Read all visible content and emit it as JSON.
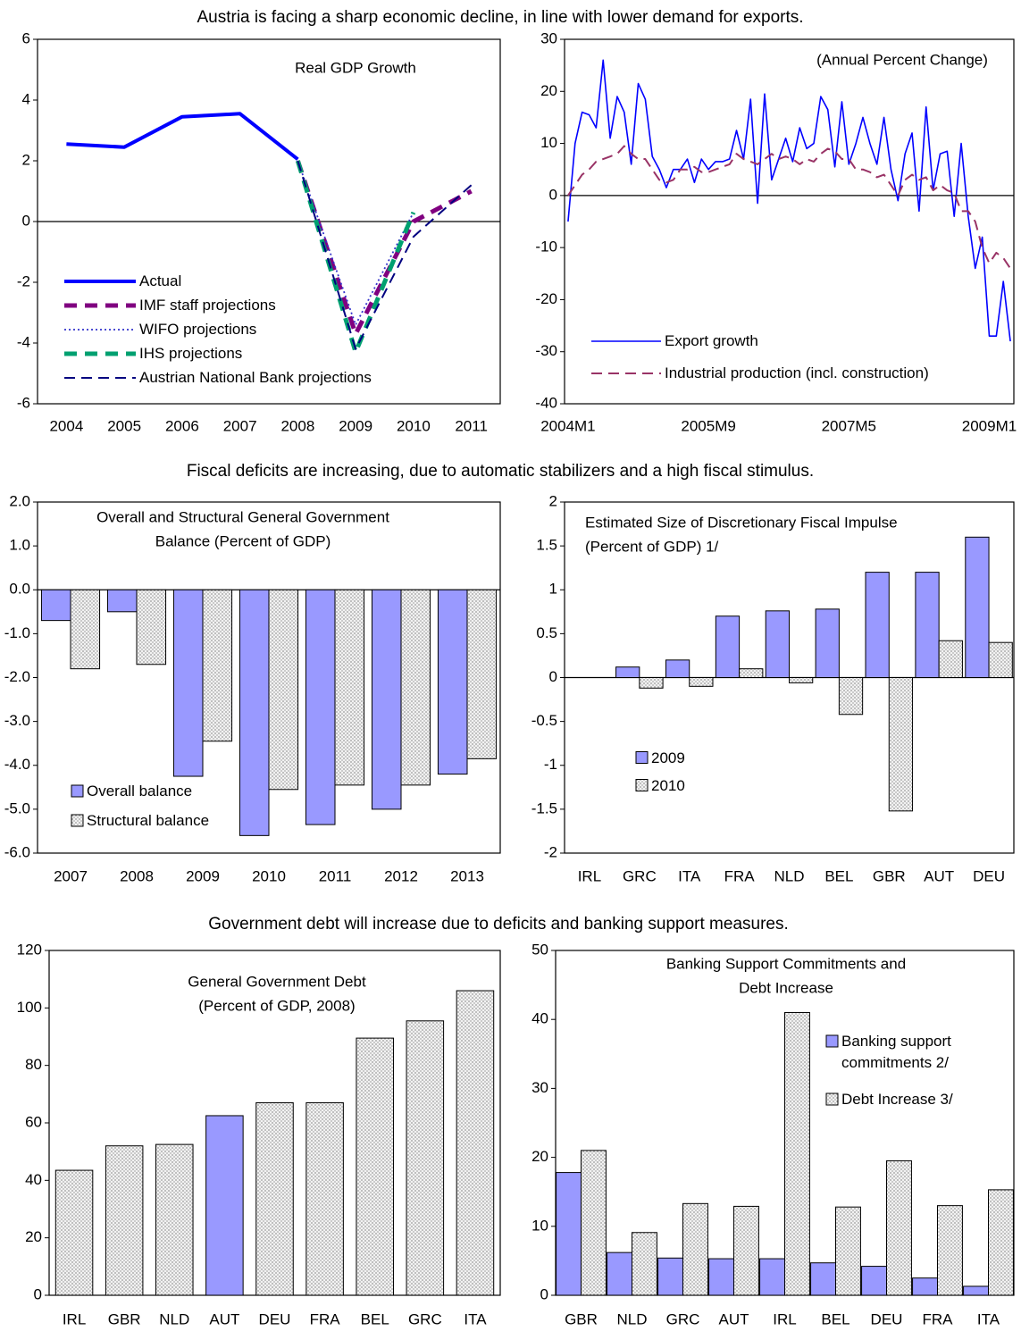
{
  "headings": [
    "Austria is facing a sharp economic decline, in line with lower demand for exports.",
    "Fiscal deficits are increasing, due to automatic stabilizers and a high fiscal stimulus.",
    "Government debt will increase due to deficits and banking support measures."
  ],
  "chart_data": [
    {
      "type": "line",
      "title": [
        "Real GDP Growth"
      ],
      "categories": [
        "2004",
        "2005",
        "2006",
        "2007",
        "2008",
        "2009",
        "2010",
        "2011"
      ],
      "ylim": [
        -6,
        6
      ],
      "yticks": [
        -6,
        -4,
        -2,
        0,
        2,
        4,
        6
      ],
      "legend": "lower left",
      "series": [
        {
          "name": "Actual",
          "color": "#0000ff",
          "style": "solid-thick",
          "values": [
            2.55,
            2.45,
            3.45,
            3.55,
            2.05,
            null,
            null,
            null
          ]
        },
        {
          "name": "IMF staff projections",
          "color": "#800080",
          "style": "dashed-thick",
          "values": [
            null,
            null,
            null,
            null,
            2.0,
            -3.7,
            0.0,
            1.0
          ]
        },
        {
          "name": "WIFO projections",
          "color": "#3333cc",
          "style": "dotted",
          "values": [
            null,
            null,
            null,
            null,
            2.0,
            -3.4,
            0.3,
            null
          ]
        },
        {
          "name": "IHS projections",
          "color": "#00a070",
          "style": "dashed-thick",
          "values": [
            null,
            null,
            null,
            null,
            2.0,
            -4.3,
            0.3,
            null
          ]
        },
        {
          "name": "Austrian National Bank projections",
          "color": "#000080",
          "style": "dashed",
          "values": [
            null,
            null,
            null,
            null,
            2.0,
            -4.2,
            -0.5,
            1.2
          ]
        }
      ]
    },
    {
      "type": "line",
      "title": [
        "(Annual Percent Change)"
      ],
      "categories": [
        "2004M1",
        null,
        null,
        null,
        null,
        null,
        null,
        null,
        null,
        null,
        null,
        null,
        null,
        null,
        null,
        null,
        null,
        null,
        null,
        null,
        "2005M9",
        null,
        null,
        null,
        null,
        null,
        null,
        null,
        null,
        null,
        null,
        null,
        null,
        null,
        null,
        null,
        null,
        null,
        null,
        null,
        "2007M5",
        null,
        null,
        null,
        null,
        null,
        null,
        null,
        null,
        null,
        null,
        null,
        null,
        null,
        null,
        null,
        null,
        null,
        null,
        null,
        "2009M1",
        null,
        null,
        null
      ],
      "ylim": [
        -40,
        30
      ],
      "yticks": [
        -40,
        -30,
        -20,
        -10,
        0,
        10,
        20,
        30
      ],
      "legend": "lower left",
      "series": [
        {
          "name": "Export growth",
          "color": "#0000ff",
          "style": "solid",
          "values": [
            -5,
            10,
            16,
            15.5,
            13,
            26,
            11,
            19,
            16,
            6,
            21.5,
            18.5,
            7.5,
            5,
            1.5,
            5,
            5,
            7,
            2.5,
            7,
            5,
            6.5,
            6.5,
            7,
            12.5,
            7,
            18.5,
            -1.5,
            19.5,
            3,
            7,
            11,
            6.5,
            13,
            9,
            10,
            19,
            16.5,
            5.5,
            18,
            6,
            10,
            15,
            10,
            6,
            15,
            5,
            -1,
            8,
            12,
            -3,
            17,
            1,
            8,
            8.5,
            -4,
            10,
            -4,
            -14,
            -8,
            -27,
            -27,
            -16.5,
            -28
          ]
        },
        {
          "name": "Industrial production (incl. construction)",
          "color": "#993366",
          "style": "dashed",
          "values": [
            0,
            2,
            4,
            5,
            6.5,
            7,
            7.5,
            8,
            9.5,
            8,
            7,
            7,
            5,
            3,
            2.5,
            3,
            5,
            5,
            5.5,
            4.5,
            4.5,
            5,
            5.5,
            6,
            8,
            7,
            6.5,
            6,
            7,
            8,
            7,
            7.5,
            7,
            6,
            7,
            6.5,
            8,
            9,
            8.5,
            7,
            7,
            5,
            5,
            4.5,
            3.5,
            4,
            2,
            0,
            3,
            4,
            3,
            3.5,
            1,
            2,
            1,
            0.5,
            -3,
            -3,
            -5,
            -10,
            -13,
            -11,
            -12,
            -14
          ]
        }
      ]
    },
    {
      "type": "bar",
      "title": [
        "Overall and Structural General Government",
        "Balance (Percent of GDP)"
      ],
      "categories": [
        "2007",
        "2008",
        "2009",
        "2010",
        "2011",
        "2012",
        "2013"
      ],
      "ylim": [
        -6,
        2
      ],
      "yticks": [
        {
          "value": -6,
          "label": "-6.0"
        },
        {
          "value": -5,
          "label": "-5.0"
        },
        {
          "value": -4,
          "label": "-4.0"
        },
        {
          "value": -3,
          "label": "-3.0"
        },
        {
          "value": -2,
          "label": "-2.0"
        },
        {
          "value": -1,
          "label": "-1.0"
        },
        {
          "value": 0,
          "label": "0.0"
        },
        {
          "value": 1,
          "label": "1.0"
        },
        {
          "value": 2,
          "label": "2.0"
        }
      ],
      "legend": "lower left",
      "series": [
        {
          "name": "Overall balance",
          "fill": "#9999ff",
          "values": [
            -0.7,
            -0.5,
            -4.25,
            -5.6,
            -5.35,
            -5.0,
            -4.2
          ]
        },
        {
          "name": "Structural balance",
          "fill": "dots",
          "values": [
            -1.8,
            -1.7,
            -3.45,
            -4.55,
            -4.45,
            -4.45,
            -3.85
          ]
        }
      ]
    },
    {
      "type": "bar",
      "title": [
        "Estimated Size of Discretionary Fiscal Impulse",
        "(Percent of GDP) 1/"
      ],
      "categories": [
        "IRL",
        "GRC",
        "ITA",
        "FRA",
        "NLD",
        "BEL",
        "GBR",
        "AUT",
        "DEU"
      ],
      "ylim": [
        -2,
        2
      ],
      "yticks": [
        -2,
        -1.5,
        -1,
        -0.5,
        0,
        0.5,
        1,
        1.5,
        2
      ],
      "legend": "center left",
      "series": [
        {
          "name": "2009",
          "fill": "#9999ff",
          "values": [
            0,
            0.12,
            0.2,
            0.7,
            0.76,
            0.78,
            1.2,
            1.2,
            1.6
          ]
        },
        {
          "name": "2010",
          "fill": "dots",
          "values": [
            0,
            -0.12,
            -0.1,
            0.1,
            -0.06,
            -0.42,
            -1.52,
            0.42,
            0.4
          ]
        }
      ]
    },
    {
      "type": "bar",
      "title": [
        "General Government Debt",
        "(Percent of GDP, 2008)"
      ],
      "categories": [
        "IRL",
        "GBR",
        "NLD",
        "AUT",
        "DEU",
        "FRA",
        "BEL",
        "GRC",
        "ITA"
      ],
      "ylim": [
        0,
        120
      ],
      "yticks": [
        0,
        20,
        40,
        60,
        80,
        100,
        120
      ],
      "values": [
        43.5,
        52,
        52.5,
        62.5,
        67,
        67,
        89.5,
        95.5,
        106
      ],
      "fills": [
        "dots",
        "dots",
        "dots",
        "#9999ff",
        "dots",
        "dots",
        "dots",
        "dots",
        "dots"
      ]
    },
    {
      "type": "bar",
      "title": [
        "Banking Support Commitments and",
        "Debt Increase"
      ],
      "categories": [
        "GBR",
        "NLD",
        "GRC",
        "AUT",
        "IRL",
        "BEL",
        "DEU",
        "FRA",
        "ITA"
      ],
      "ylim": [
        0,
        50
      ],
      "yticks": [
        0,
        10,
        20,
        30,
        40,
        50
      ],
      "legend": "upper right",
      "series": [
        {
          "name": "Banking support commitments 2/",
          "fill": "#9999ff",
          "values": [
            17.8,
            6.2,
            5.4,
            5.3,
            5.3,
            4.7,
            4.2,
            2.5,
            1.3
          ]
        },
        {
          "name": "Debt Increase 3/",
          "fill": "dots",
          "values": [
            21,
            9.1,
            13.3,
            12.9,
            41,
            12.8,
            19.5,
            13,
            15.3
          ]
        }
      ]
    }
  ]
}
